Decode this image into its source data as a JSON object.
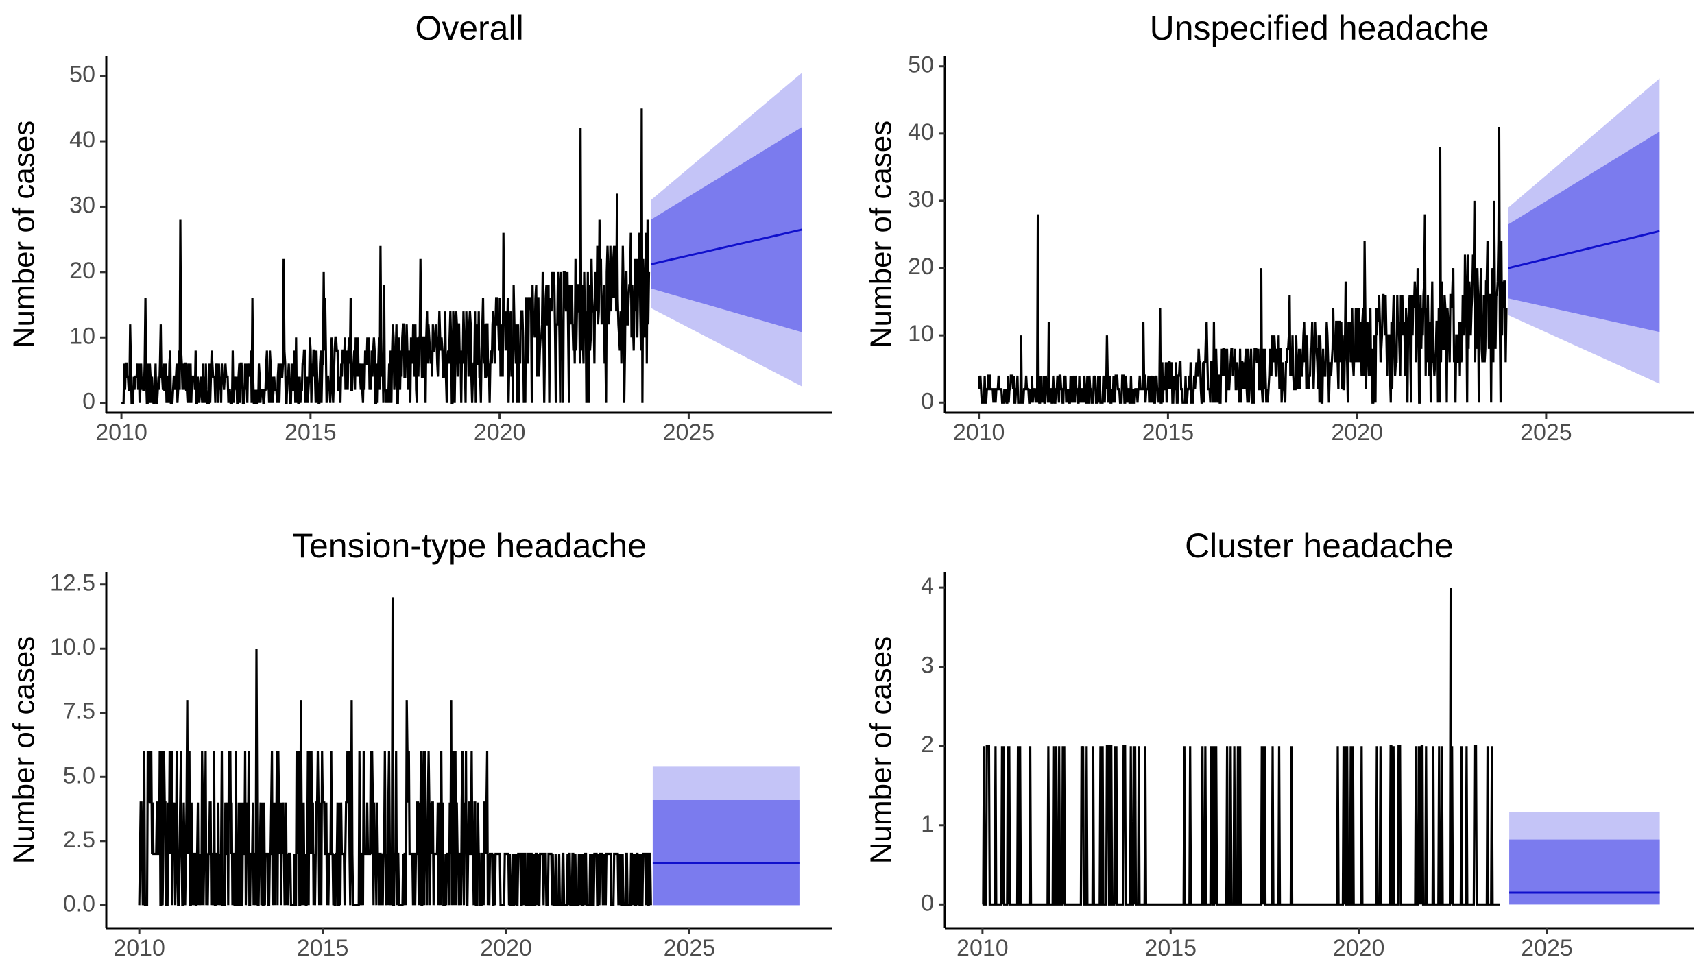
{
  "colors": {
    "observed": "#000000",
    "forecast_line": "#1010cc",
    "band_80": "#7b7bee",
    "band_95": "#c4c4f7"
  },
  "chart_data": [
    {
      "type": "line",
      "title": "Overall",
      "xlabel": "",
      "ylabel": "Number of cases",
      "xlim": [
        2009.6,
        2028.8
      ],
      "ylim": [
        -1.5,
        53
      ],
      "xticks": [
        2010,
        2015,
        2020,
        2025
      ],
      "xtick_labels": [
        "2010",
        "2015",
        "2020",
        "2025"
      ],
      "yticks": [
        0,
        10,
        20,
        30,
        40,
        50
      ],
      "ytick_labels": [
        "0",
        "10",
        "20",
        "30",
        "40",
        "50"
      ],
      "observed_range": [
        2010.0,
        2023.95
      ],
      "observed_summary": {
        "min": 0,
        "max": 45,
        "trend_start": 3,
        "trend_end": 16
      },
      "observed_peaks": [
        [
          2011.55,
          28
        ],
        [
          2014.3,
          22
        ],
        [
          2016.85,
          24
        ],
        [
          2020.1,
          26
        ],
        [
          2022.15,
          42
        ],
        [
          2023.1,
          32
        ],
        [
          2023.75,
          45
        ]
      ],
      "forecast": {
        "x": [
          2024.0,
          2028.0
        ],
        "mean": [
          21.2,
          26.5
        ],
        "lo80": [
          17.5,
          10.8
        ],
        "hi80": [
          28.0,
          42.2
        ],
        "lo95": [
          14.5,
          2.5
        ],
        "hi95": [
          31.0,
          50.5
        ]
      }
    },
    {
      "type": "line",
      "title": "Unspecified headache",
      "xlabel": "",
      "ylabel": "Number of cases",
      "xlim": [
        2009.1,
        2028.9
      ],
      "ylim": [
        -1.5,
        51.5
      ],
      "xticks": [
        2010,
        2015,
        2020,
        2025
      ],
      "xtick_labels": [
        "2010",
        "2015",
        "2020",
        "2025"
      ],
      "yticks": [
        0,
        10,
        20,
        30,
        40,
        50
      ],
      "ytick_labels": [
        "0",
        "10",
        "20",
        "30",
        "40",
        "50"
      ],
      "observed_range": [
        2010.0,
        2023.95
      ],
      "observed_summary": {
        "min": 0,
        "max": 41,
        "trend_start": 1,
        "trend_end": 15
      },
      "observed_peaks": [
        [
          2011.55,
          28
        ],
        [
          2014.35,
          12
        ],
        [
          2020.2,
          24
        ],
        [
          2021.8,
          28
        ],
        [
          2022.2,
          38
        ],
        [
          2023.1,
          30
        ],
        [
          2023.75,
          41
        ]
      ],
      "forecast": {
        "x": [
          2024.0,
          2028.0
        ],
        "mean": [
          20.0,
          25.5
        ],
        "lo80": [
          15.5,
          10.5
        ],
        "hi80": [
          26.5,
          40.3
        ],
        "lo95": [
          13.0,
          2.8
        ],
        "hi95": [
          29.0,
          48.2
        ]
      }
    },
    {
      "type": "line",
      "title": "Tension-type headache",
      "xlabel": "",
      "ylabel": "Number of cases",
      "xlim": [
        2009.1,
        2028.9
      ],
      "ylim": [
        -0.9,
        13
      ],
      "xticks": [
        2010,
        2015,
        2020,
        2025
      ],
      "xtick_labels": [
        "2010",
        "2015",
        "2020",
        "2025"
      ],
      "yticks": [
        0,
        2.5,
        5,
        7.5,
        10,
        12.5
      ],
      "ytick_labels": [
        "0.0",
        "2.5",
        "5.0",
        "7.5",
        "10.0",
        "12.5"
      ],
      "observed_range": [
        2010.0,
        2023.95
      ],
      "observed_summary": {
        "min": 0,
        "max": 12
      },
      "observed_peaks": [
        [
          2011.3,
          8
        ],
        [
          2013.2,
          10
        ],
        [
          2014.4,
          8
        ],
        [
          2015.8,
          8
        ],
        [
          2016.9,
          12
        ],
        [
          2017.3,
          8
        ],
        [
          2018.5,
          8
        ]
      ],
      "forecast": {
        "x": [
          2024.0,
          2028.0
        ],
        "mean": [
          1.65,
          1.65
        ],
        "lo80": [
          0,
          0
        ],
        "hi80": [
          4.1,
          4.1
        ],
        "lo95": [
          0,
          0
        ],
        "hi95": [
          5.4,
          5.4
        ]
      }
    },
    {
      "type": "line",
      "title": "Cluster headache",
      "xlabel": "",
      "ylabel": "Number of cases",
      "xlim": [
        2009.0,
        2028.9
      ],
      "ylim": [
        -0.3,
        4.2
      ],
      "xticks": [
        2010,
        2015,
        2020,
        2025
      ],
      "xtick_labels": [
        "2010",
        "2015",
        "2020",
        "2025"
      ],
      "yticks": [
        0,
        1,
        2,
        3,
        4
      ],
      "ytick_labels": [
        "0",
        "1",
        "2",
        "3",
        "4"
      ],
      "observed_range": [
        2010.0,
        2023.75
      ],
      "observed_summary": {
        "min": 0,
        "max": 4
      },
      "observed_peaks": [
        [
          2022.45,
          4
        ],
        [
          2012.65,
          1
        ]
      ],
      "forecast": {
        "x": [
          2024.0,
          2028.0
        ],
        "mean": [
          0.15,
          0.15
        ],
        "lo80": [
          0,
          0
        ],
        "hi80": [
          0.82,
          0.82
        ],
        "lo95": [
          0,
          0
        ],
        "hi95": [
          1.17,
          1.17
        ]
      }
    }
  ]
}
